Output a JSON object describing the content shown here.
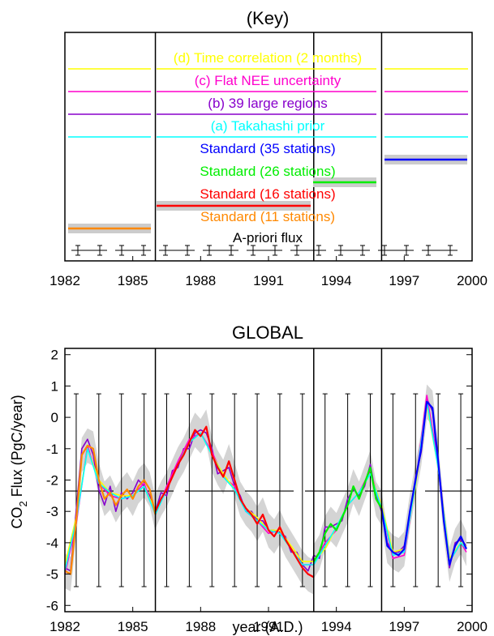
{
  "colors": {
    "yellow": "#ffff00",
    "magenta": "#ff00cc",
    "purple": "#8800cc",
    "cyan": "#00ffff",
    "blue": "#0000ff",
    "green": "#00ee00",
    "red": "#ff0000",
    "orange": "#ff8800",
    "black": "#000000",
    "gray_band": "#cccccc"
  },
  "chart_data": [
    {
      "type": "line",
      "title": "(Key)",
      "xlim": [
        1982,
        2000
      ],
      "xticks": [
        "1982",
        "1985",
        "1988",
        "1991",
        "1994",
        "1997",
        "2000"
      ],
      "panel_boundaries": [
        1986,
        1993,
        1996
      ],
      "legend": [
        {
          "label": "(d) Time correlation (2 months)",
          "color": "#ffff00"
        },
        {
          "label": "(c) Flat NEE uncertainty",
          "color": "#ff00cc"
        },
        {
          "label": "(b) 39 large regions",
          "color": "#8800cc"
        },
        {
          "label": "(a) Takahashi prior",
          "color": "#00ffff"
        },
        {
          "label": "Standard (35 stations)",
          "color": "#0000ff"
        },
        {
          "label": "Standard (26 stations)",
          "color": "#00ee00"
        },
        {
          "label": "Standard (16 stations)",
          "color": "#ff0000"
        },
        {
          "label": "Standard (11 stations)",
          "color": "#ff8800"
        },
        {
          "label": "A-priori flux",
          "color": "#000000"
        }
      ]
    },
    {
      "type": "line",
      "title": "GLOBAL",
      "xlabel": "year (A.D.)",
      "ylabel_main": "CO",
      "ylabel_sub": "2",
      "ylabel_rest": " Flux (PgC/year)",
      "xlim": [
        1982,
        2000
      ],
      "ylim": [
        -6.2,
        2.2
      ],
      "xticks": [
        "1982",
        "1985",
        "1988",
        "1991",
        "1994",
        "1997",
        "2000"
      ],
      "yticks": [
        "2",
        "1",
        "0",
        "-1",
        "-2",
        "-3",
        "-4",
        "-5",
        "-6"
      ],
      "panel_boundaries": [
        1986,
        1993,
        1996
      ],
      "prior": {
        "value": -2.35,
        "error_low": -5.4,
        "error_high": 0.75,
        "error_x": [
          1982.5,
          1983.5,
          1984.5,
          1985.5,
          1986.5,
          1987.5,
          1988.5,
          1989.5,
          1990.5,
          1991.5,
          1992.5,
          1993.5,
          1994.5,
          1995.5,
          1996.5,
          1997.5,
          1998.5,
          1999.5
        ]
      },
      "series": [
        {
          "name": "Standard (11 stations)",
          "color": "#ff8800",
          "x": [
            1982.0,
            1982.25,
            1982.5,
            1982.75,
            1983.0,
            1983.25,
            1983.5,
            1983.75,
            1984.0,
            1984.25,
            1984.5,
            1984.75,
            1985.0,
            1985.25,
            1985.5,
            1985.75,
            1986.0
          ],
          "y": [
            -4.9,
            -5.0,
            -3.3,
            -1.2,
            -0.9,
            -1.0,
            -2.0,
            -2.6,
            -2.4,
            -2.8,
            -2.5,
            -2.3,
            -2.6,
            -2.2,
            -2.0,
            -2.3,
            -3.1
          ]
        },
        {
          "name": "Standard (16 stations)",
          "color": "#ff0000",
          "x": [
            1986.0,
            1986.25,
            1986.5,
            1986.75,
            1987.0,
            1987.25,
            1987.5,
            1987.75,
            1988.0,
            1988.25,
            1988.5,
            1988.75,
            1989.0,
            1989.25,
            1989.5,
            1989.75,
            1990.0,
            1990.25,
            1990.5,
            1990.75,
            1991.0,
            1991.25,
            1991.5,
            1991.75,
            1992.0,
            1992.25,
            1992.5,
            1992.75,
            1993.0
          ],
          "y": [
            -3.0,
            -2.6,
            -2.3,
            -1.9,
            -1.5,
            -1.2,
            -0.8,
            -0.4,
            -0.6,
            -0.3,
            -1.2,
            -1.6,
            -1.9,
            -1.4,
            -2.0,
            -2.6,
            -2.9,
            -3.1,
            -3.4,
            -3.1,
            -3.6,
            -3.8,
            -3.5,
            -3.9,
            -4.2,
            -4.5,
            -4.8,
            -5.0,
            -5.1
          ]
        },
        {
          "name": "Standard (26 stations)",
          "color": "#00ee00",
          "x": [
            1993.0,
            1993.25,
            1993.5,
            1993.75,
            1994.0,
            1994.25,
            1994.5,
            1994.75,
            1995.0,
            1995.25,
            1995.5,
            1995.75,
            1996.0
          ],
          "y": [
            -4.6,
            -4.3,
            -3.7,
            -3.4,
            -3.6,
            -3.2,
            -2.8,
            -2.2,
            -2.6,
            -2.1,
            -1.6,
            -2.6,
            -2.9
          ]
        },
        {
          "name": "Standard (35 stations)",
          "color": "#0000ff",
          "x": [
            1996.0,
            1996.25,
            1996.5,
            1996.75,
            1997.0,
            1997.25,
            1997.5,
            1997.75,
            1998.0,
            1998.25,
            1998.5,
            1998.75,
            1999.0,
            1999.25,
            1999.5,
            1999.75
          ],
          "y": [
            -2.9,
            -4.1,
            -4.3,
            -4.4,
            -4.2,
            -3.0,
            -2.0,
            -1.0,
            0.5,
            0.3,
            -1.4,
            -3.3,
            -4.7,
            -4.1,
            -3.8,
            -4.2
          ]
        },
        {
          "name": "(b) 39 large regions",
          "color": "#8800cc",
          "x": [
            1982.0,
            1982.25,
            1982.5,
            1982.75,
            1983.0,
            1983.25,
            1983.5,
            1983.75,
            1984.0,
            1984.25,
            1984.5,
            1984.75,
            1985.0,
            1985.25,
            1985.5,
            1985.75,
            1986.0,
            1986.25,
            1986.5,
            1986.75,
            1987.0,
            1987.25,
            1987.5,
            1987.75,
            1988.0,
            1988.25,
            1988.5,
            1988.75,
            1989.0,
            1989.25,
            1989.5,
            1989.75,
            1990.0,
            1990.25,
            1990.5,
            1990.75,
            1991.0,
            1991.25,
            1991.5,
            1991.75,
            1992.0,
            1992.25,
            1992.5,
            1992.75,
            1993.0,
            1993.25,
            1993.5,
            1993.75,
            1994.0,
            1994.25,
            1994.5,
            1994.75,
            1995.0,
            1995.25,
            1995.5,
            1995.75,
            1996.0,
            1996.25,
            1996.5,
            1996.75,
            1997.0,
            1997.25,
            1997.5,
            1997.75,
            1998.0,
            1998.25,
            1998.5,
            1998.75,
            1999.0,
            1999.25,
            1999.5,
            1999.75
          ],
          "y": [
            -4.8,
            -4.9,
            -3.0,
            -1.0,
            -0.7,
            -1.2,
            -2.3,
            -2.8,
            -2.2,
            -3.0,
            -2.4,
            -2.6,
            -2.4,
            -2.0,
            -2.2,
            -2.5,
            -3.0,
            -2.4,
            -2.5,
            -1.7,
            -1.6,
            -1.0,
            -1.0,
            -0.5,
            -0.4,
            -0.5,
            -1.0,
            -1.8,
            -1.7,
            -1.6,
            -2.2,
            -2.5,
            -3.0,
            -3.0,
            -3.3,
            -3.3,
            -3.6,
            -3.6,
            -3.7,
            -3.8,
            -4.3,
            -4.3,
            -4.7,
            -4.9,
            -4.4,
            -4.5,
            -3.5,
            -3.5,
            -3.4,
            -3.3,
            -2.6,
            -2.3,
            -2.5,
            -2.2,
            -1.5,
            -2.5,
            -3.0,
            -4.0,
            -4.3,
            -4.3,
            -4.1,
            -3.1,
            -1.9,
            -1.1,
            0.6,
            0.2,
            -1.6,
            -3.2,
            -4.8,
            -4.0,
            -3.9,
            -4.1
          ]
        },
        {
          "name": "(c) Flat NEE uncertainty",
          "color": "#ff00cc",
          "x": [
            1982.0,
            1982.5,
            1983.0,
            1983.5,
            1984.0,
            1984.5,
            1985.0,
            1985.5,
            1986.0,
            1986.5,
            1987.0,
            1987.5,
            1988.0,
            1988.5,
            1989.0,
            1989.5,
            1990.0,
            1990.5,
            1991.0,
            1991.5,
            1992.0,
            1992.5,
            1993.0,
            1993.5,
            1994.0,
            1994.5,
            1995.0,
            1995.5,
            1996.0,
            1996.5,
            1997.0,
            1997.5,
            1998.0,
            1998.5,
            1999.0,
            1999.5,
            1999.75
          ],
          "y": [
            -5.0,
            -3.4,
            -0.9,
            -2.1,
            -2.5,
            -2.6,
            -2.5,
            -2.1,
            -3.1,
            -2.2,
            -1.4,
            -0.7,
            -0.5,
            -1.1,
            -1.9,
            -2.2,
            -3.0,
            -3.3,
            -3.7,
            -3.6,
            -4.2,
            -4.7,
            -4.7,
            -4.0,
            -3.6,
            -2.8,
            -2.4,
            -1.7,
            -2.9,
            -4.5,
            -4.4,
            -2.1,
            0.7,
            -1.5,
            -4.6,
            -4.0,
            -4.3
          ]
        },
        {
          "name": "(d) Time correlation (2 months)",
          "color": "#ffff00",
          "x": [
            1982.0,
            1982.5,
            1983.0,
            1983.5,
            1984.0,
            1984.5,
            1985.0,
            1985.5,
            1986.0,
            1986.5,
            1987.0,
            1987.5,
            1988.0,
            1988.5,
            1989.0,
            1989.5,
            1990.0,
            1990.5,
            1991.0,
            1991.5,
            1992.0,
            1992.5,
            1993.0,
            1993.5,
            1994.0,
            1994.5,
            1995.0,
            1995.5,
            1996.0,
            1996.5,
            1997.0,
            1997.5,
            1998.0,
            1998.5,
            1999.0,
            1999.5,
            1999.75
          ],
          "y": [
            -4.7,
            -3.2,
            -1.0,
            -2.0,
            -2.4,
            -2.5,
            -2.5,
            -2.2,
            -3.0,
            -2.3,
            -1.5,
            -0.8,
            -0.5,
            -1.2,
            -1.8,
            -2.3,
            -2.9,
            -3.2,
            -3.6,
            -3.6,
            -4.1,
            -4.6,
            -4.6,
            -4.2,
            -3.5,
            -2.8,
            -2.4,
            -1.8,
            -2.8,
            -4.3,
            -4.2,
            -2.2,
            0.4,
            -1.6,
            -4.5,
            -4.0,
            -4.1
          ]
        },
        {
          "name": "(a) Takahashi prior",
          "color": "#00ffff",
          "x": [
            1982.0,
            1982.5,
            1983.0,
            1983.5,
            1984.0,
            1984.5,
            1985.0,
            1985.5,
            1986.0,
            1986.5,
            1987.0,
            1987.5,
            1988.0,
            1988.5,
            1989.0,
            1989.5,
            1990.0,
            1990.5,
            1991.0,
            1991.5,
            1992.0,
            1992.5,
            1993.0,
            1993.5,
            1994.0,
            1994.5,
            1995.0,
            1995.5,
            1996.0,
            1996.5,
            1997.0,
            1997.5,
            1998.0,
            1998.5,
            1999.0,
            1999.5,
            1999.75
          ],
          "y": [
            -4.9,
            -3.3,
            -1.0,
            -2.1,
            -2.4,
            -2.6,
            -2.5,
            -2.2,
            -3.1,
            -2.3,
            -1.5,
            -0.8,
            -0.5,
            -1.2,
            -1.9,
            -2.3,
            -3.0,
            -3.3,
            -3.6,
            -3.7,
            -4.2,
            -4.7,
            -4.7,
            -4.1,
            -3.5,
            -2.8,
            -2.4,
            -1.8,
            -2.9,
            -4.4,
            -4.3,
            -2.1,
            0.5,
            -1.6,
            -4.6,
            -4.0,
            -4.2
          ]
        }
      ]
    }
  ]
}
